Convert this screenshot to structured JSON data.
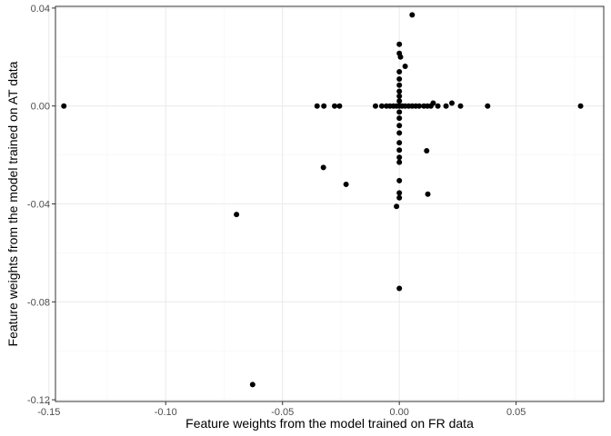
{
  "chart_data": {
    "type": "scatter",
    "title": "",
    "xlabel": "Feature weights from the model trained on FR data",
    "ylabel": "Feature weights from the model trained on AT data",
    "xlim": [
      -0.1472,
      0.0875
    ],
    "ylim": [
      -0.1207,
      0.0407
    ],
    "x_ticks": [
      -0.15,
      -0.1,
      -0.05,
      0.0,
      0.05
    ],
    "x_tick_labels": [
      "-0.15",
      "-0.10",
      "-0.05",
      "0.00",
      "0.05"
    ],
    "y_ticks": [
      0.04,
      0.0,
      -0.04,
      -0.08,
      -0.12
    ],
    "y_tick_labels": [
      "0.04",
      "0.00",
      "-0.04",
      "-0.08",
      "-0.12"
    ],
    "grid": true,
    "theme": "bw",
    "colors": {
      "point": "#000000",
      "panel_border": "#333333",
      "grid_major": "#ebebeb",
      "grid_minor": "#f5f5f5",
      "tick_text": "#4d4d4d",
      "axis_title": "#000000"
    },
    "points": [
      {
        "x": -0.1436,
        "y": 0.0
      },
      {
        "x": -0.0697,
        "y": -0.0443
      },
      {
        "x": -0.0628,
        "y": -0.1138
      },
      {
        "x": -0.0352,
        "y": 0.0
      },
      {
        "x": -0.0323,
        "y": 0.0
      },
      {
        "x": -0.0325,
        "y": -0.0251
      },
      {
        "x": -0.0277,
        "y": 0.0
      },
      {
        "x": -0.0256,
        "y": 0.0
      },
      {
        "x": -0.0228,
        "y": -0.032
      },
      {
        "x": -0.0102,
        "y": 0.0
      },
      {
        "x": -0.0075,
        "y": 0.0
      },
      {
        "x": -0.0055,
        "y": 0.0
      },
      {
        "x": -0.004,
        "y": 0.0
      },
      {
        "x": -0.0025,
        "y": 0.0
      },
      {
        "x": -0.0012,
        "y": 0.0
      },
      {
        "x": 0.0012,
        "y": 0.0
      },
      {
        "x": 0.0025,
        "y": 0.0
      },
      {
        "x": 0.004,
        "y": 0.0
      },
      {
        "x": 0.0055,
        "y": 0.0
      },
      {
        "x": 0.007,
        "y": 0.0
      },
      {
        "x": 0.0085,
        "y": 0.0
      },
      {
        "x": 0.0105,
        "y": 0.0
      },
      {
        "x": 0.012,
        "y": 0.0
      },
      {
        "x": 0.0135,
        "y": 0.0
      },
      {
        "x": 0.0145,
        "y": 0.0012
      },
      {
        "x": 0.0165,
        "y": 0.0
      },
      {
        "x": 0.02,
        "y": 0.0
      },
      {
        "x": 0.0225,
        "y": 0.0012
      },
      {
        "x": 0.0262,
        "y": 0.0
      },
      {
        "x": 0.0378,
        "y": 0.0
      },
      {
        "x": 0.0776,
        "y": 0.0
      },
      {
        "x": 0.0055,
        "y": 0.0372
      },
      {
        "x": 0.0,
        "y": 0.0252
      },
      {
        "x": 0.0,
        "y": 0.0215
      },
      {
        "x": 0.0005,
        "y": 0.02
      },
      {
        "x": 0.0025,
        "y": 0.0162
      },
      {
        "x": 0.0,
        "y": 0.014
      },
      {
        "x": 0.0,
        "y": 0.011
      },
      {
        "x": 0.0,
        "y": 0.0085
      },
      {
        "x": 0.0,
        "y": 0.006
      },
      {
        "x": 0.0,
        "y": 0.004
      },
      {
        "x": 0.0,
        "y": 0.002
      },
      {
        "x": 0.0,
        "y": 0.0
      },
      {
        "x": 0.0,
        "y": -0.0025
      },
      {
        "x": 0.0,
        "y": -0.005
      },
      {
        "x": 0.0,
        "y": -0.008
      },
      {
        "x": 0.0,
        "y": -0.011
      },
      {
        "x": 0.0,
        "y": -0.015
      },
      {
        "x": 0.0,
        "y": -0.018
      },
      {
        "x": 0.0,
        "y": -0.021
      },
      {
        "x": 0.0,
        "y": -0.023
      },
      {
        "x": 0.0,
        "y": -0.0305
      },
      {
        "x": 0.0,
        "y": -0.0355
      },
      {
        "x": 0.0,
        "y": -0.0375
      },
      {
        "x": -0.0012,
        "y": -0.041
      },
      {
        "x": 0.0,
        "y": -0.0745
      },
      {
        "x": 0.0117,
        "y": -0.0183
      },
      {
        "x": 0.0122,
        "y": -0.036
      }
    ]
  }
}
